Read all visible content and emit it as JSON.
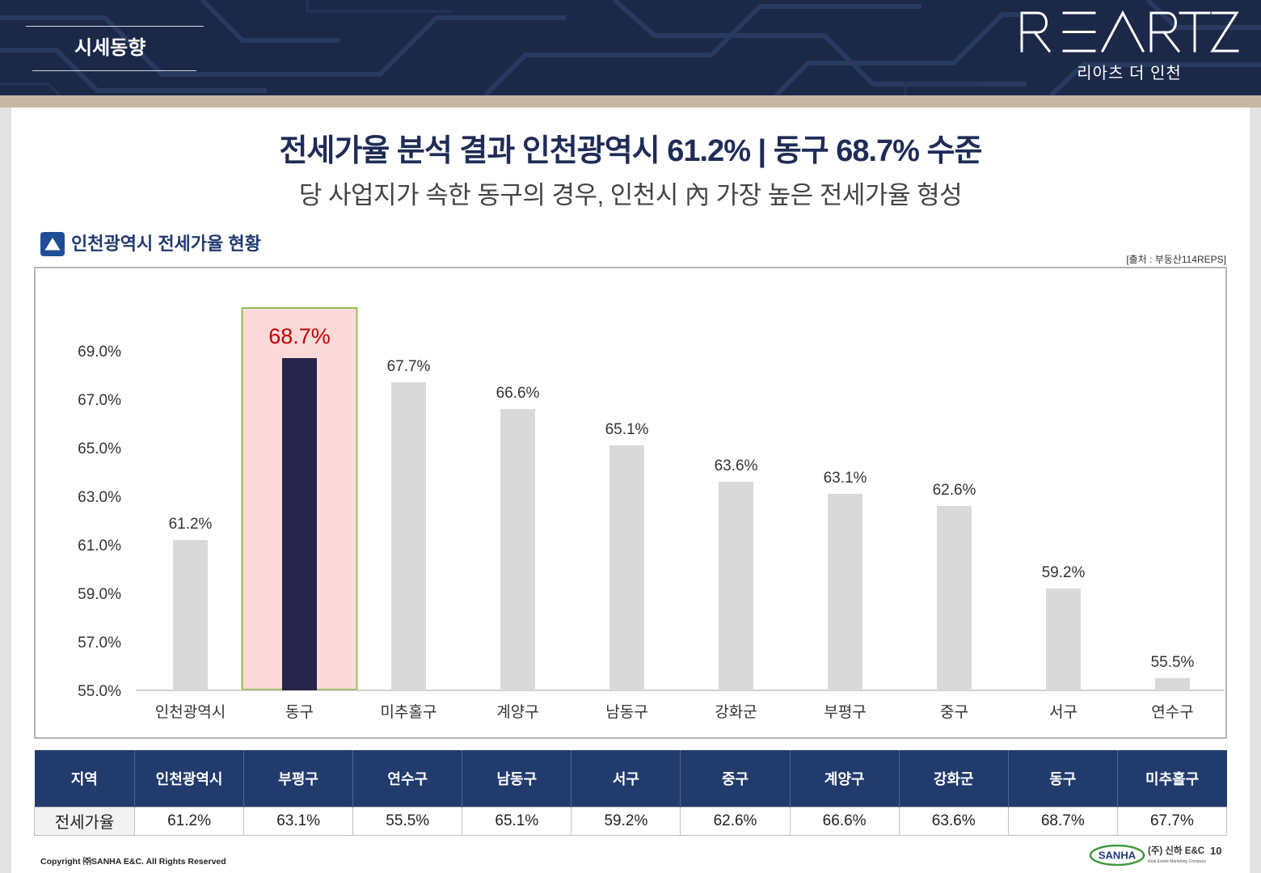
{
  "header": {
    "section_title": "시세동향",
    "logo_text": "REARTZ",
    "brand_name": "리아츠 더 인천"
  },
  "headline": {
    "title": "전세가율 분석 결과 인천광역시 61.2% | 동구 68.7% 수준",
    "subtitle": "당 사업지가 속한 동구의 경우, 인천시 內 가장 높은 전세가율 형성"
  },
  "section": {
    "icon": "triangle-up-icon",
    "source": "[출처 : 부동산114REPS]"
  },
  "chart_data": {
    "type": "bar",
    "title": "인천광역시 전세가율 현황",
    "categories": [
      "인천광역시",
      "동구",
      "미추홀구",
      "계양구",
      "남동구",
      "강화군",
      "부평구",
      "중구",
      "서구",
      "연수구"
    ],
    "values": [
      61.2,
      68.7,
      67.7,
      66.6,
      65.1,
      63.6,
      63.1,
      62.6,
      59.2,
      55.5
    ],
    "value_labels": [
      "61.2%",
      "68.7%",
      "67.7%",
      "66.6%",
      "65.1%",
      "63.6%",
      "63.1%",
      "62.6%",
      "59.2%",
      "55.5%"
    ],
    "ylim": [
      55,
      70
    ],
    "yticks": [
      69,
      67,
      65,
      63,
      61,
      59,
      57,
      55
    ],
    "ytick_labels": [
      "69.0%",
      "67.0%",
      "65.0%",
      "63.0%",
      "61.0%",
      "59.0%",
      "57.0%",
      "55.0%"
    ],
    "highlight_index": 1,
    "grid": false,
    "legend": false,
    "colors": {
      "bar": "#d9d9d9",
      "highlight_bar": "#26244a",
      "highlight_fill": "#fddada",
      "highlight_border": "#8dc14f",
      "highlight_label": "#c00000",
      "label": "#333333"
    }
  },
  "table": {
    "headers": [
      "지역",
      "인천광역시",
      "부평구",
      "연수구",
      "남동구",
      "서구",
      "중구",
      "계양구",
      "강화군",
      "동구",
      "미추홀구"
    ],
    "row": [
      "전세가율",
      "61.2%",
      "63.1%",
      "55.5%",
      "65.1%",
      "59.2%",
      "62.6%",
      "66.6%",
      "63.6%",
      "68.7%",
      "67.7%"
    ]
  },
  "footer": {
    "copyright": "Copyright ㈜SANHA E&C. All Rights Reserved",
    "company_logo": "SANHA",
    "company_name": "(주) 신하 E&C",
    "company_tagline": "Real Estate Marketing Company",
    "page_number": "10"
  },
  "theme": {
    "header_bg": "#1b2848",
    "stripe": "#c6b6a3",
    "navy": "#213b6c",
    "title": "#1f2c57"
  }
}
